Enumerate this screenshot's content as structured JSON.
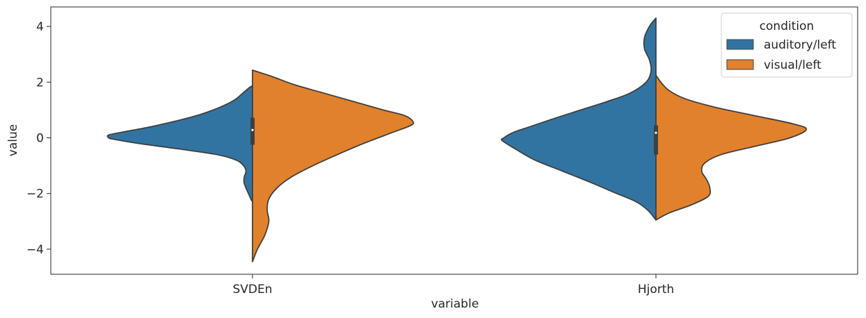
{
  "chart_data": {
    "type": "violin",
    "split": true,
    "xlabel": "variable",
    "ylabel": "value",
    "categories": [
      "SVDEn",
      "Hjorth"
    ],
    "ylim": [
      -4.9,
      4.7
    ],
    "yticks": [
      -4,
      -2,
      0,
      2,
      4
    ],
    "ytick_labels": [
      "−4",
      "−2",
      "0",
      "2",
      "4"
    ],
    "legend": {
      "title": "condition",
      "placement": "upper right",
      "entries": [
        "auditory/left",
        "visual/left"
      ]
    },
    "series": [
      {
        "name": "auditory/left",
        "color": "#3274a1",
        "side": "left",
        "profiles": [
          {
            "category": "SVDEn",
            "y_range": [
              -2.3,
              1.87
            ],
            "profile": [
              [
                -2.3,
                0.0
              ],
              [
                -2.2,
                0.01
              ],
              [
                -2.0,
                0.025
              ],
              [
                -1.8,
                0.04
              ],
              [
                -1.6,
                0.052
              ],
              [
                -1.4,
                0.05
              ],
              [
                -1.2,
                0.04
              ],
              [
                -1.0,
                0.055
              ],
              [
                -0.8,
                0.1
              ],
              [
                -0.6,
                0.22
              ],
              [
                -0.4,
                0.45
              ],
              [
                -0.2,
                0.7
              ],
              [
                -0.05,
                0.85
              ],
              [
                0.0,
                0.88
              ],
              [
                0.1,
                0.88
              ],
              [
                0.2,
                0.8
              ],
              [
                0.4,
                0.62
              ],
              [
                0.6,
                0.47
              ],
              [
                0.8,
                0.34
              ],
              [
                1.0,
                0.24
              ],
              [
                1.2,
                0.16
              ],
              [
                1.4,
                0.1
              ],
              [
                1.6,
                0.06
              ],
              [
                1.8,
                0.02
              ],
              [
                1.87,
                0.0
              ]
            ],
            "box": {
              "q1": -0.25,
              "median": 0.28,
              "q3": 0.72
            }
          },
          {
            "category": "Hjorth",
            "y_range": [
              -2.95,
              4.3
            ],
            "profile": [
              [
                -2.95,
                0.0
              ],
              [
                -2.6,
                0.05
              ],
              [
                -2.3,
                0.12
              ],
              [
                -2.0,
                0.24
              ],
              [
                -1.6,
                0.4
              ],
              [
                -1.2,
                0.57
              ],
              [
                -0.8,
                0.74
              ],
              [
                -0.4,
                0.86
              ],
              [
                -0.1,
                0.94
              ],
              [
                0.0,
                0.93
              ],
              [
                0.2,
                0.87
              ],
              [
                0.4,
                0.77
              ],
              [
                0.7,
                0.62
              ],
              [
                1.0,
                0.46
              ],
              [
                1.3,
                0.3
              ],
              [
                1.6,
                0.16
              ],
              [
                2.0,
                0.06
              ],
              [
                2.4,
                0.03
              ],
              [
                2.8,
                0.04
              ],
              [
                3.2,
                0.07
              ],
              [
                3.6,
                0.07
              ],
              [
                4.0,
                0.04
              ],
              [
                4.3,
                0.0
              ]
            ],
            "box": {
              "q1": -0.6,
              "median": 0.18,
              "q3": 0.45
            }
          }
        ]
      },
      {
        "name": "visual/left",
        "color": "#e1812c",
        "side": "right",
        "profiles": [
          {
            "category": "SVDEn",
            "y_range": [
              -4.45,
              2.43
            ],
            "profile": [
              [
                -4.45,
                0.0
              ],
              [
                -4.0,
                0.03
              ],
              [
                -3.5,
                0.075
              ],
              [
                -3.0,
                0.1
              ],
              [
                -2.6,
                0.09
              ],
              [
                -2.2,
                0.1
              ],
              [
                -1.8,
                0.15
              ],
              [
                -1.4,
                0.24
              ],
              [
                -1.0,
                0.37
              ],
              [
                -0.6,
                0.52
              ],
              [
                -0.2,
                0.68
              ],
              [
                0.2,
                0.86
              ],
              [
                0.45,
                0.97
              ],
              [
                0.6,
                0.98
              ],
              [
                0.8,
                0.93
              ],
              [
                1.0,
                0.8
              ],
              [
                1.3,
                0.62
              ],
              [
                1.6,
                0.44
              ],
              [
                1.9,
                0.26
              ],
              [
                2.2,
                0.12
              ],
              [
                2.43,
                0.0
              ]
            ],
            "box": {
              "q1": -0.25,
              "median": 0.28,
              "q3": 0.72
            }
          },
          {
            "category": "Hjorth",
            "y_range": [
              -2.95,
              2.25
            ],
            "profile": [
              [
                -2.95,
                0.0
              ],
              [
                -2.7,
                0.08
              ],
              [
                -2.4,
                0.22
              ],
              [
                -2.1,
                0.32
              ],
              [
                -1.8,
                0.33
              ],
              [
                -1.5,
                0.31
              ],
              [
                -1.2,
                0.28
              ],
              [
                -0.9,
                0.3
              ],
              [
                -0.6,
                0.4
              ],
              [
                -0.3,
                0.61
              ],
              [
                0.0,
                0.82
              ],
              [
                0.3,
                0.92
              ],
              [
                0.5,
                0.84
              ],
              [
                0.8,
                0.6
              ],
              [
                1.1,
                0.36
              ],
              [
                1.4,
                0.18
              ],
              [
                1.7,
                0.08
              ],
              [
                2.0,
                0.03
              ],
              [
                2.25,
                0.0
              ]
            ],
            "box": {
              "q1": -0.6,
              "median": 0.18,
              "q3": 0.45
            }
          }
        ]
      }
    ]
  }
}
